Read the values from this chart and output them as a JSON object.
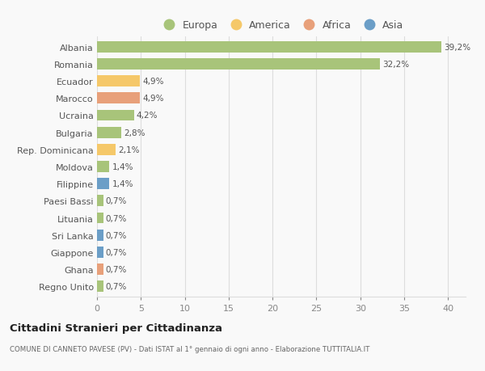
{
  "countries": [
    "Albania",
    "Romania",
    "Ecuador",
    "Marocco",
    "Ucraina",
    "Bulgaria",
    "Rep. Dominicana",
    "Moldova",
    "Filippine",
    "Paesi Bassi",
    "Lituania",
    "Sri Lanka",
    "Giappone",
    "Ghana",
    "Regno Unito"
  ],
  "values": [
    39.2,
    32.2,
    4.9,
    4.9,
    4.2,
    2.8,
    2.1,
    1.4,
    1.4,
    0.7,
    0.7,
    0.7,
    0.7,
    0.7,
    0.7
  ],
  "labels": [
    "39,2%",
    "32,2%",
    "4,9%",
    "4,9%",
    "4,2%",
    "2,8%",
    "2,1%",
    "1,4%",
    "1,4%",
    "0,7%",
    "0,7%",
    "0,7%",
    "0,7%",
    "0,7%",
    "0,7%"
  ],
  "categories": [
    "Europa",
    "Europa",
    "America",
    "Africa",
    "Europa",
    "Europa",
    "America",
    "Europa",
    "Asia",
    "Europa",
    "Europa",
    "Asia",
    "Asia",
    "Africa",
    "Europa"
  ],
  "category_colors": {
    "Europa": "#a8c47a",
    "America": "#f5c869",
    "Africa": "#e8a07a",
    "Asia": "#6b9ec7"
  },
  "legend_order": [
    "Europa",
    "America",
    "Africa",
    "Asia"
  ],
  "title": "Cittadini Stranieri per Cittadinanza",
  "subtitle": "COMUNE DI CANNETO PAVESE (PV) - Dati ISTAT al 1° gennaio di ogni anno - Elaborazione TUTTITALIA.IT",
  "xlim": [
    0,
    42
  ],
  "xticks": [
    0,
    5,
    10,
    15,
    20,
    25,
    30,
    35,
    40
  ],
  "bg_color": "#f9f9f9",
  "grid_color": "#dddddd",
  "bar_height": 0.65
}
